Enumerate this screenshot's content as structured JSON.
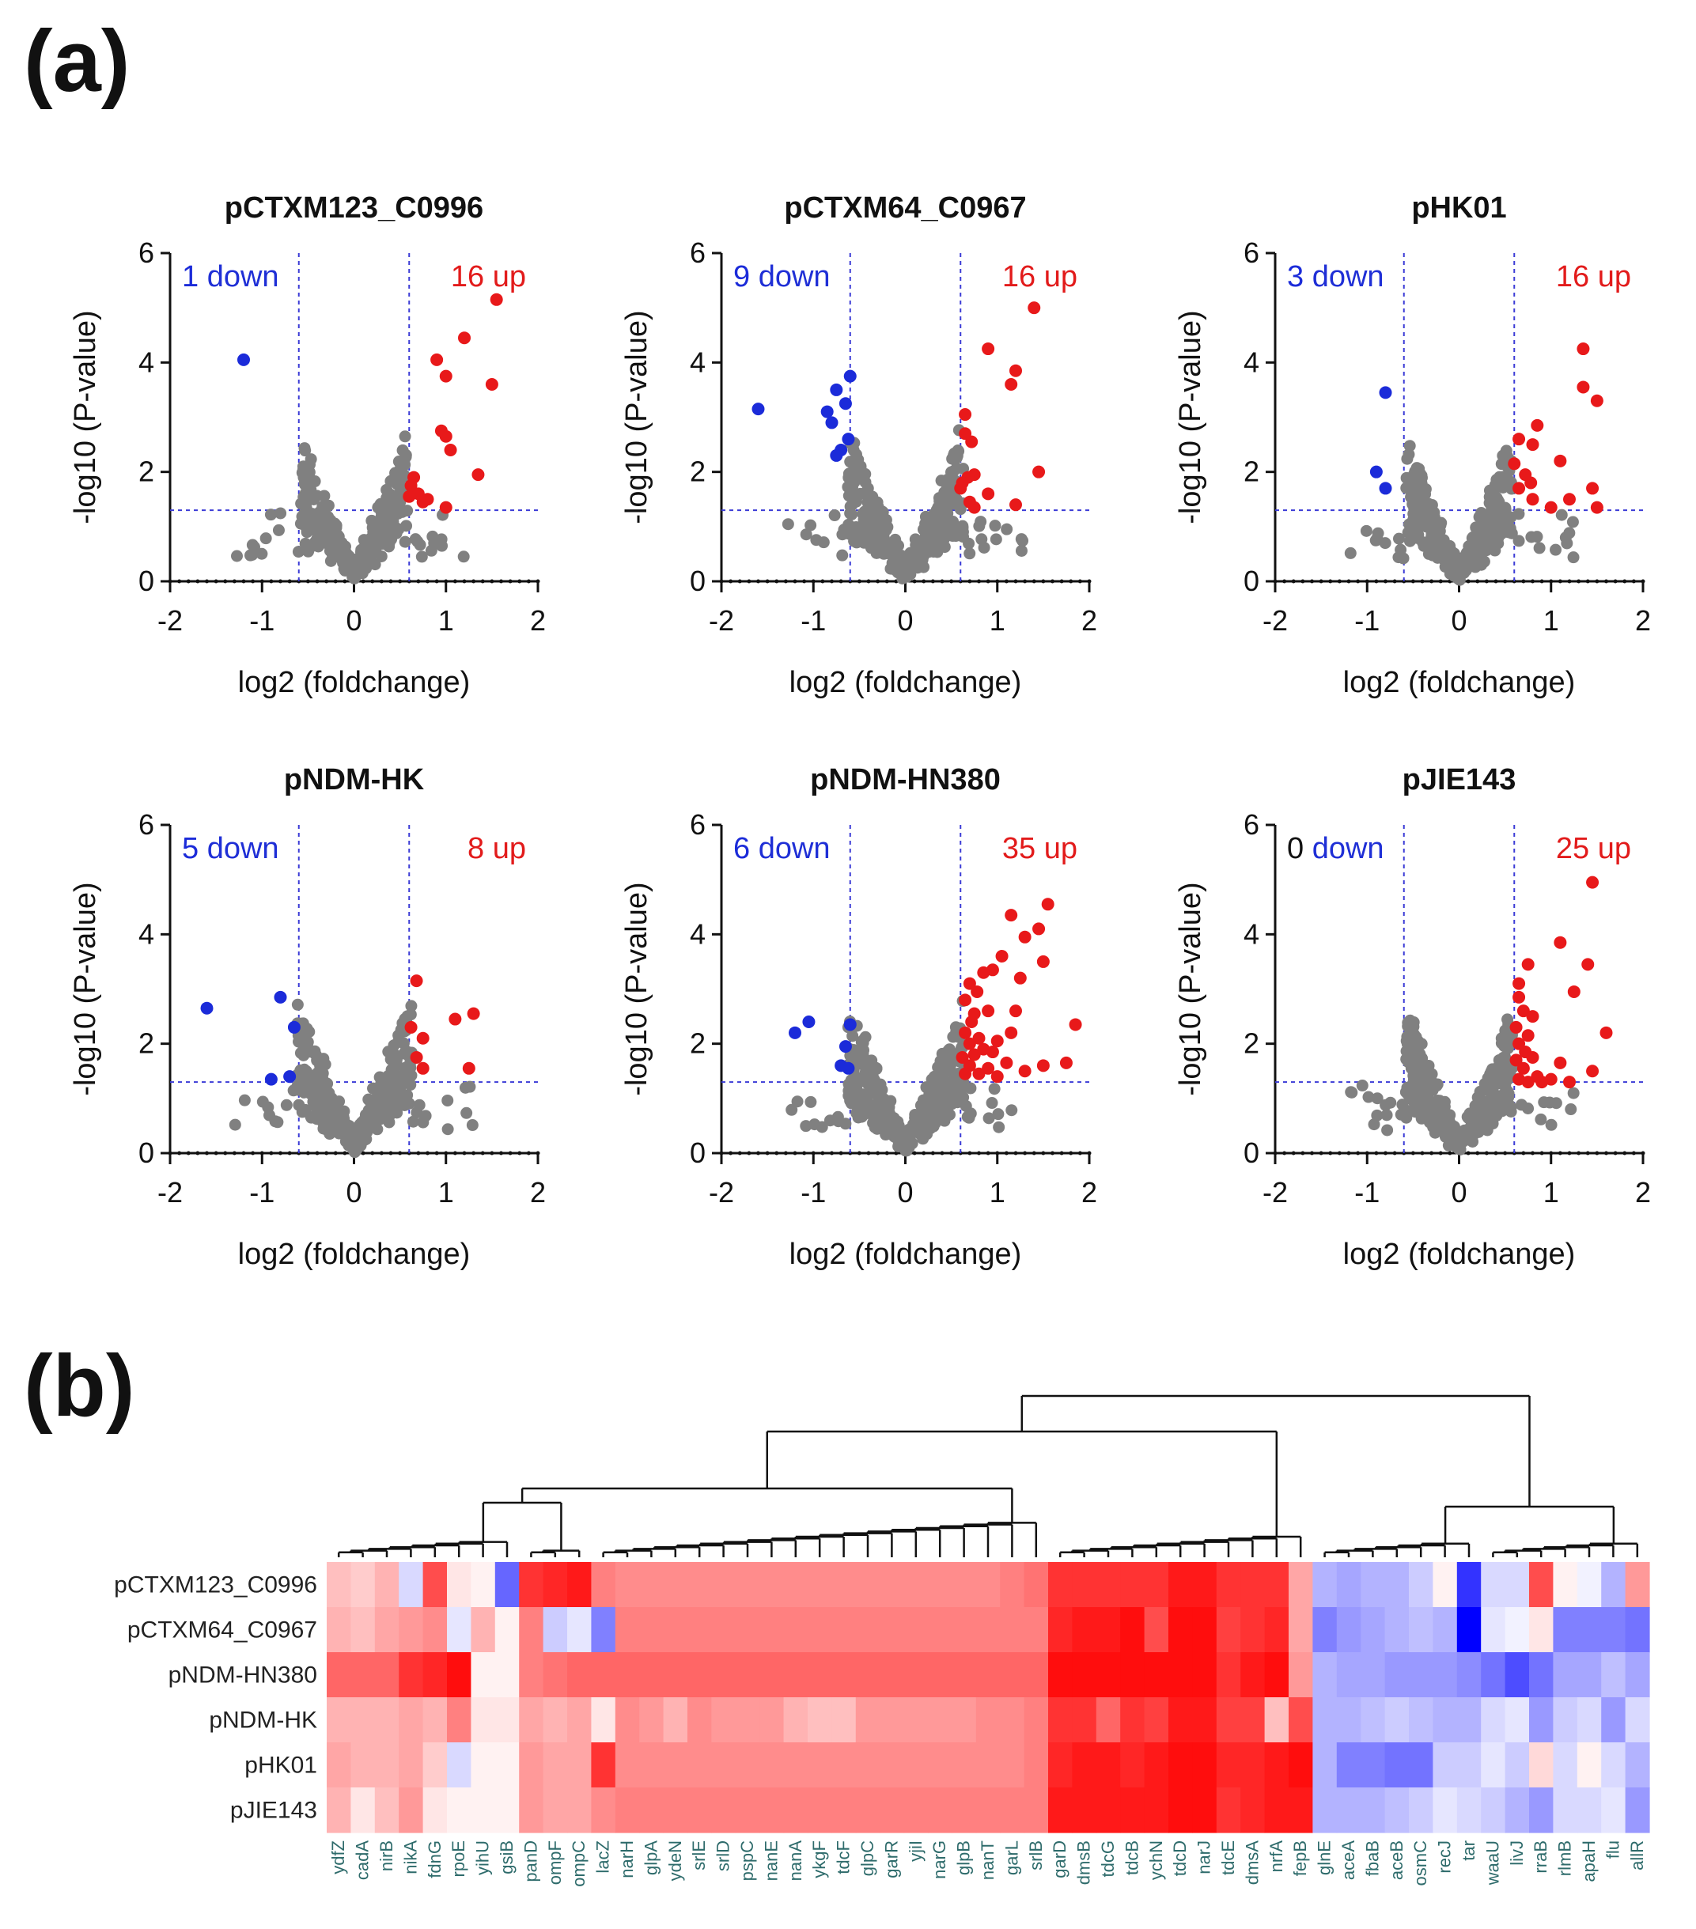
{
  "figure": {
    "panel_a_label": "(a)",
    "panel_b_label": "(b)"
  },
  "colors": {
    "up": "#e8191a",
    "down": "#1b2bd9",
    "ns": "#808080",
    "threshold_line": "#3b3bd6",
    "heat_high": "#ff0000",
    "heat_mid": "#ffffff",
    "heat_low": "#0000ff"
  },
  "chart_data": [
    {
      "type": "scatter",
      "title": "pCTXM123_C0996",
      "xlabel": "log2 (foldchange)",
      "ylabel": "-log10 (P-value)",
      "xlim": [
        -2,
        2
      ],
      "ylim": [
        0,
        6
      ],
      "xticks": [
        -2,
        -1,
        0,
        1,
        2
      ],
      "yticks": [
        0,
        2,
        4,
        6
      ],
      "thresholds": {
        "fc": [
          -0.6,
          0.6
        ],
        "p": 1.3
      },
      "down_count": "1",
      "down_text": "down",
      "up_count": "16",
      "up_text": "up",
      "down_points": [
        [
          -1.2,
          4.05
        ]
      ],
      "up_points": [
        [
          1.55,
          5.15
        ],
        [
          1.2,
          4.45
        ],
        [
          0.9,
          4.05
        ],
        [
          1.0,
          3.75
        ],
        [
          1.5,
          3.6
        ],
        [
          0.95,
          2.75
        ],
        [
          1.0,
          2.65
        ],
        [
          1.05,
          2.4
        ],
        [
          1.35,
          1.95
        ],
        [
          0.65,
          1.9
        ],
        [
          0.62,
          1.75
        ],
        [
          0.7,
          1.6
        ],
        [
          0.8,
          1.5
        ],
        [
          0.75,
          1.45
        ],
        [
          1.0,
          1.35
        ],
        [
          0.6,
          1.55
        ]
      ],
      "ns_spread": 0.55,
      "seed": 11
    },
    {
      "type": "scatter",
      "title": "pCTXM64_C0967",
      "xlabel": "log2 (foldchange)",
      "ylabel": "-log10 (P-value)",
      "xlim": [
        -2,
        2
      ],
      "ylim": [
        0,
        6
      ],
      "xticks": [
        -2,
        -1,
        0,
        1,
        2
      ],
      "yticks": [
        0,
        2,
        4,
        6
      ],
      "thresholds": {
        "fc": [
          -0.6,
          0.6
        ],
        "p": 1.3
      },
      "down_count": "9",
      "down_text": "down",
      "up_count": "16",
      "up_text": "up",
      "down_points": [
        [
          -1.6,
          3.15
        ],
        [
          -0.6,
          3.75
        ],
        [
          -0.75,
          3.5
        ],
        [
          -0.65,
          3.25
        ],
        [
          -0.85,
          3.1
        ],
        [
          -0.8,
          2.9
        ],
        [
          -0.62,
          2.6
        ],
        [
          -0.7,
          2.4
        ],
        [
          -0.75,
          2.3
        ]
      ],
      "up_points": [
        [
          1.4,
          5.0
        ],
        [
          0.9,
          4.25
        ],
        [
          1.2,
          3.85
        ],
        [
          1.15,
          3.6
        ],
        [
          0.65,
          3.05
        ],
        [
          0.65,
          2.7
        ],
        [
          0.72,
          2.55
        ],
        [
          0.75,
          1.95
        ],
        [
          0.68,
          1.9
        ],
        [
          0.62,
          1.8
        ],
        [
          0.6,
          1.7
        ],
        [
          1.45,
          2.0
        ],
        [
          0.7,
          1.45
        ],
        [
          0.75,
          1.35
        ],
        [
          1.2,
          1.4
        ],
        [
          0.9,
          1.6
        ]
      ],
      "ns_spread": 0.6,
      "seed": 23
    },
    {
      "type": "scatter",
      "title": "pHK01",
      "xlabel": "log2 (foldchange)",
      "ylabel": "-log10 (P-value)",
      "xlim": [
        -2,
        2
      ],
      "ylim": [
        0,
        6
      ],
      "xticks": [
        -2,
        -1,
        0,
        1,
        2
      ],
      "yticks": [
        0,
        2,
        4,
        6
      ],
      "thresholds": {
        "fc": [
          -0.6,
          0.6
        ],
        "p": 1.3
      },
      "down_count": "3",
      "down_text": "down",
      "up_count": "16",
      "up_text": "up",
      "down_points": [
        [
          -0.8,
          3.45
        ],
        [
          -0.9,
          2.0
        ],
        [
          -0.8,
          1.7
        ]
      ],
      "up_points": [
        [
          1.35,
          4.25
        ],
        [
          1.35,
          3.55
        ],
        [
          1.5,
          3.3
        ],
        [
          0.85,
          2.85
        ],
        [
          0.65,
          2.6
        ],
        [
          0.8,
          2.5
        ],
        [
          1.1,
          2.2
        ],
        [
          0.6,
          2.15
        ],
        [
          0.72,
          1.95
        ],
        [
          0.78,
          1.8
        ],
        [
          0.65,
          1.7
        ],
        [
          1.45,
          1.7
        ],
        [
          0.8,
          1.5
        ],
        [
          1.2,
          1.5
        ],
        [
          1.0,
          1.35
        ],
        [
          1.5,
          1.35
        ]
      ],
      "ns_spread": 0.55,
      "seed": 37
    },
    {
      "type": "scatter",
      "title": "pNDM-HK",
      "xlabel": "log2 (foldchange)",
      "ylabel": "-log10 (P-value)",
      "xlim": [
        -2,
        2
      ],
      "ylim": [
        0,
        6
      ],
      "xticks": [
        -2,
        -1,
        0,
        1,
        2
      ],
      "yticks": [
        0,
        2,
        4,
        6
      ],
      "thresholds": {
        "fc": [
          -0.6,
          0.6
        ],
        "p": 1.3
      },
      "down_count": "5",
      "down_text": "down",
      "up_count": "8",
      "up_text": "up",
      "down_points": [
        [
          -1.6,
          2.65
        ],
        [
          -0.8,
          2.85
        ],
        [
          -0.65,
          2.3
        ],
        [
          -0.9,
          1.35
        ],
        [
          -0.7,
          1.4
        ]
      ],
      "up_points": [
        [
          0.68,
          3.15
        ],
        [
          1.3,
          2.55
        ],
        [
          1.1,
          2.45
        ],
        [
          0.75,
          2.1
        ],
        [
          0.68,
          1.75
        ],
        [
          0.75,
          1.55
        ],
        [
          1.25,
          1.55
        ],
        [
          0.62,
          2.3
        ]
      ],
      "ns_spread": 0.6,
      "seed": 41
    },
    {
      "type": "scatter",
      "title": "pNDM-HN380",
      "xlabel": "log2 (foldchange)",
      "ylabel": "-log10 (P-value)",
      "xlim": [
        -2,
        2
      ],
      "ylim": [
        0,
        6
      ],
      "xticks": [
        -2,
        -1,
        0,
        1,
        2
      ],
      "yticks": [
        0,
        2,
        4,
        6
      ],
      "thresholds": {
        "fc": [
          -0.6,
          0.6
        ],
        "p": 1.3
      },
      "down_count": "6",
      "down_text": "down",
      "up_count": "35",
      "up_text": "up",
      "down_points": [
        [
          -1.2,
          2.2
        ],
        [
          -1.05,
          2.4
        ],
        [
          -0.6,
          2.35
        ],
        [
          -0.65,
          1.95
        ],
        [
          -0.7,
          1.6
        ],
        [
          -0.62,
          1.55
        ]
      ],
      "up_points": [
        [
          1.55,
          4.55
        ],
        [
          1.15,
          4.35
        ],
        [
          1.45,
          4.1
        ],
        [
          1.3,
          3.95
        ],
        [
          1.05,
          3.6
        ],
        [
          1.25,
          3.2
        ],
        [
          0.95,
          3.35
        ],
        [
          0.85,
          3.3
        ],
        [
          0.7,
          3.1
        ],
        [
          0.78,
          2.95
        ],
        [
          0.65,
          2.8
        ],
        [
          1.5,
          3.5
        ],
        [
          0.9,
          2.6
        ],
        [
          0.72,
          2.4
        ],
        [
          1.2,
          2.6
        ],
        [
          0.65,
          2.2
        ],
        [
          0.8,
          2.1
        ],
        [
          1.85,
          2.35
        ],
        [
          0.7,
          2.0
        ],
        [
          0.85,
          1.9
        ],
        [
          0.95,
          1.85
        ],
        [
          0.75,
          1.8
        ],
        [
          1.0,
          2.05
        ],
        [
          0.62,
          1.75
        ],
        [
          1.1,
          1.65
        ],
        [
          1.5,
          1.6
        ],
        [
          1.75,
          1.65
        ],
        [
          1.3,
          1.5
        ],
        [
          0.9,
          1.55
        ],
        [
          0.7,
          1.6
        ],
        [
          0.8,
          1.45
        ],
        [
          0.65,
          1.45
        ],
        [
          1.0,
          1.4
        ],
        [
          0.75,
          2.55
        ],
        [
          1.15,
          2.2
        ]
      ],
      "ns_spread": 0.6,
      "seed": 53
    },
    {
      "type": "scatter",
      "title": "pJIE143",
      "xlabel": "log2 (foldchange)",
      "ylabel": "-log10 (P-value)",
      "xlim": [
        -2,
        2
      ],
      "ylim": [
        0,
        6
      ],
      "xticks": [
        -2,
        -1,
        0,
        1,
        2
      ],
      "yticks": [
        0,
        2,
        4,
        6
      ],
      "thresholds": {
        "fc": [
          -0.6,
          0.6
        ],
        "p": 1.3
      },
      "down_count": "0",
      "down_text": "down",
      "up_count": "25",
      "up_text": "up",
      "down_points": [],
      "up_points": [
        [
          1.45,
          4.95
        ],
        [
          1.1,
          3.85
        ],
        [
          0.75,
          3.45
        ],
        [
          1.4,
          3.45
        ],
        [
          0.65,
          3.1
        ],
        [
          1.25,
          2.95
        ],
        [
          0.65,
          2.85
        ],
        [
          0.7,
          2.6
        ],
        [
          0.8,
          2.5
        ],
        [
          0.62,
          2.3
        ],
        [
          0.75,
          2.15
        ],
        [
          1.6,
          2.2
        ],
        [
          0.65,
          2.0
        ],
        [
          0.72,
          1.85
        ],
        [
          0.8,
          1.75
        ],
        [
          0.62,
          1.7
        ],
        [
          1.1,
          1.65
        ],
        [
          0.7,
          1.55
        ],
        [
          0.85,
          1.4
        ],
        [
          1.45,
          1.5
        ],
        [
          0.65,
          1.35
        ],
        [
          0.75,
          1.3
        ],
        [
          1.0,
          1.35
        ],
        [
          1.2,
          1.3
        ],
        [
          0.9,
          1.3
        ]
      ],
      "ns_spread": 0.55,
      "seed": 67
    },
    {
      "type": "heatmap",
      "rows": [
        "pCTXM123_C0996",
        "pCTXM64_C0967",
        "pNDM-HN380",
        "pNDM-HK",
        "pHK01",
        "pJIE143"
      ],
      "columns": [
        "ydfZ",
        "cadA",
        "nirB",
        "nikA",
        "fdnG",
        "rpoE",
        "yihU",
        "gsiB",
        "panD",
        "ompF",
        "ompC",
        "lacZ",
        "narH",
        "glpA",
        "ydeN",
        "srlE",
        "srlD",
        "pspC",
        "nanE",
        "nanA",
        "ykgF",
        "tdcF",
        "glpC",
        "garR",
        "yjiI",
        "narG",
        "glpB",
        "nanT",
        "garL",
        "srlB",
        "garD",
        "dmsB",
        "tdcG",
        "tdcB",
        "ychN",
        "tdcD",
        "narJ",
        "tdcE",
        "dmsA",
        "nrfA",
        "fepB",
        "glnE",
        "aceA",
        "fbaB",
        "aceB",
        "osmC",
        "recJ",
        "tar",
        "waaU",
        "livJ",
        "rraB",
        "rlmB",
        "apaH",
        "flu",
        "allR"
      ],
      "value_range": [
        -1,
        1
      ],
      "values": [
        [
          0.25,
          0.2,
          0.3,
          -0.15,
          0.7,
          0.1,
          0.05,
          -0.6,
          0.8,
          0.85,
          0.9,
          0.5,
          0.45,
          0.45,
          0.45,
          0.45,
          0.45,
          0.45,
          0.45,
          0.45,
          0.45,
          0.45,
          0.45,
          0.45,
          0.45,
          0.45,
          0.45,
          0.45,
          0.5,
          0.55,
          0.8,
          0.8,
          0.8,
          0.8,
          0.8,
          0.9,
          0.9,
          0.8,
          0.8,
          0.8,
          0.35,
          -0.3,
          -0.35,
          -0.3,
          -0.3,
          -0.2,
          0.05,
          -0.8,
          -0.15,
          -0.15,
          0.7,
          0.05,
          -0.05,
          -0.3,
          0.4
        ],
        [
          0.3,
          0.25,
          0.35,
          0.4,
          0.45,
          -0.1,
          0.3,
          0.05,
          0.5,
          -0.2,
          -0.1,
          -0.5,
          0.5,
          0.5,
          0.5,
          0.5,
          0.5,
          0.5,
          0.5,
          0.5,
          0.5,
          0.5,
          0.5,
          0.5,
          0.5,
          0.5,
          0.5,
          0.5,
          0.5,
          0.5,
          0.85,
          0.9,
          0.9,
          0.95,
          0.7,
          0.95,
          0.95,
          0.75,
          0.8,
          0.85,
          0.35,
          -0.5,
          -0.4,
          -0.35,
          -0.3,
          -0.25,
          -0.3,
          -1.0,
          -0.1,
          -0.05,
          0.1,
          -0.5,
          -0.5,
          -0.5,
          -0.55
        ],
        [
          0.6,
          0.6,
          0.6,
          0.8,
          0.85,
          0.95,
          0.05,
          0.05,
          0.5,
          0.55,
          0.6,
          0.6,
          0.6,
          0.6,
          0.6,
          0.6,
          0.6,
          0.6,
          0.6,
          0.6,
          0.6,
          0.6,
          0.6,
          0.6,
          0.6,
          0.6,
          0.6,
          0.6,
          0.6,
          0.6,
          0.95,
          0.95,
          0.95,
          0.95,
          0.95,
          0.95,
          0.95,
          0.8,
          0.9,
          0.95,
          0.4,
          -0.3,
          -0.35,
          -0.35,
          -0.4,
          -0.4,
          -0.4,
          -0.45,
          -0.55,
          -0.7,
          -0.55,
          -0.35,
          -0.35,
          -0.25,
          -0.35
        ],
        [
          0.3,
          0.3,
          0.3,
          0.35,
          0.3,
          0.5,
          0.1,
          0.1,
          0.35,
          0.3,
          0.35,
          0.1,
          0.45,
          0.4,
          0.3,
          0.45,
          0.4,
          0.4,
          0.4,
          0.3,
          0.25,
          0.25,
          0.4,
          0.4,
          0.4,
          0.4,
          0.4,
          0.45,
          0.45,
          0.5,
          0.8,
          0.8,
          0.6,
          0.8,
          0.75,
          0.9,
          0.9,
          0.75,
          0.75,
          0.25,
          0.7,
          -0.3,
          -0.3,
          -0.25,
          -0.2,
          -0.25,
          -0.3,
          -0.3,
          -0.15,
          -0.1,
          -0.4,
          -0.2,
          -0.15,
          -0.4,
          -0.15
        ],
        [
          0.35,
          0.3,
          0.3,
          0.35,
          0.2,
          -0.15,
          0.05,
          0.05,
          0.4,
          0.35,
          0.35,
          0.8,
          0.45,
          0.45,
          0.45,
          0.45,
          0.45,
          0.45,
          0.45,
          0.45,
          0.45,
          0.45,
          0.45,
          0.45,
          0.45,
          0.45,
          0.45,
          0.45,
          0.45,
          0.5,
          0.85,
          0.9,
          0.9,
          0.85,
          0.9,
          0.95,
          0.95,
          0.85,
          0.85,
          0.9,
          0.95,
          -0.3,
          -0.5,
          -0.5,
          -0.55,
          -0.55,
          -0.2,
          -0.2,
          -0.1,
          -0.2,
          0.15,
          -0.15,
          0.05,
          -0.15,
          -0.3
        ],
        [
          0.3,
          0.1,
          0.25,
          0.4,
          0.1,
          0.05,
          0.05,
          0.05,
          0.4,
          0.35,
          0.35,
          0.45,
          0.5,
          0.5,
          0.5,
          0.5,
          0.5,
          0.5,
          0.5,
          0.5,
          0.5,
          0.5,
          0.5,
          0.5,
          0.5,
          0.5,
          0.5,
          0.5,
          0.5,
          0.5,
          0.9,
          0.9,
          0.9,
          0.9,
          0.9,
          0.95,
          0.95,
          0.8,
          0.85,
          0.9,
          0.9,
          -0.3,
          -0.3,
          -0.3,
          -0.25,
          -0.2,
          -0.1,
          -0.15,
          -0.2,
          -0.3,
          -0.4,
          -0.15,
          -0.15,
          -0.1,
          -0.4
        ]
      ]
    }
  ]
}
